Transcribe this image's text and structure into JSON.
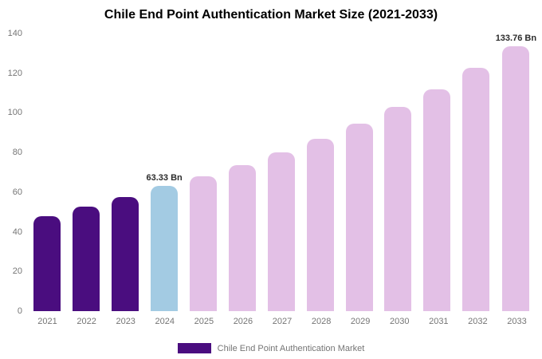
{
  "title": "Chile End Point Authentication Market Size (2021-2033)",
  "legend": {
    "label": "Chile End Point Authentication Market",
    "swatch_color": "#4a0d7f"
  },
  "colors": {
    "past_bars": "#4a0d7f",
    "current_bar": "#a3cbe3",
    "forecast_bars": "#e3c0e6",
    "tick_label": "#757575",
    "annotation": "#2b2b2b"
  },
  "chart_data": {
    "type": "bar",
    "title": "Chile End Point Authentication Market Size (2021-2033)",
    "categories": [
      "2021",
      "2022",
      "2023",
      "2024",
      "2025",
      "2026",
      "2027",
      "2028",
      "2029",
      "2030",
      "2031",
      "2032",
      "2033"
    ],
    "values": [
      48,
      52.5,
      57.5,
      63.33,
      68,
      73.5,
      80,
      87,
      94.5,
      103,
      112,
      122.5,
      133.76
    ],
    "unit": "Bn",
    "bar_colors": [
      "#4a0d7f",
      "#4a0d7f",
      "#4a0d7f",
      "#a3cbe3",
      "#e3c0e6",
      "#e3c0e6",
      "#e3c0e6",
      "#e3c0e6",
      "#e3c0e6",
      "#e3c0e6",
      "#e3c0e6",
      "#e3c0e6",
      "#e3c0e6"
    ],
    "annotations": {
      "2024": "63.33 Bn",
      "2033": "133.76 Bn"
    },
    "xlabel": "",
    "ylabel": "",
    "ylim": [
      0,
      140
    ],
    "yticks": [
      0,
      20,
      40,
      60,
      80,
      100,
      120,
      140
    ],
    "grid": false,
    "legend_position": "bottom",
    "legend_entries": [
      "Chile End Point Authentication Market"
    ]
  }
}
